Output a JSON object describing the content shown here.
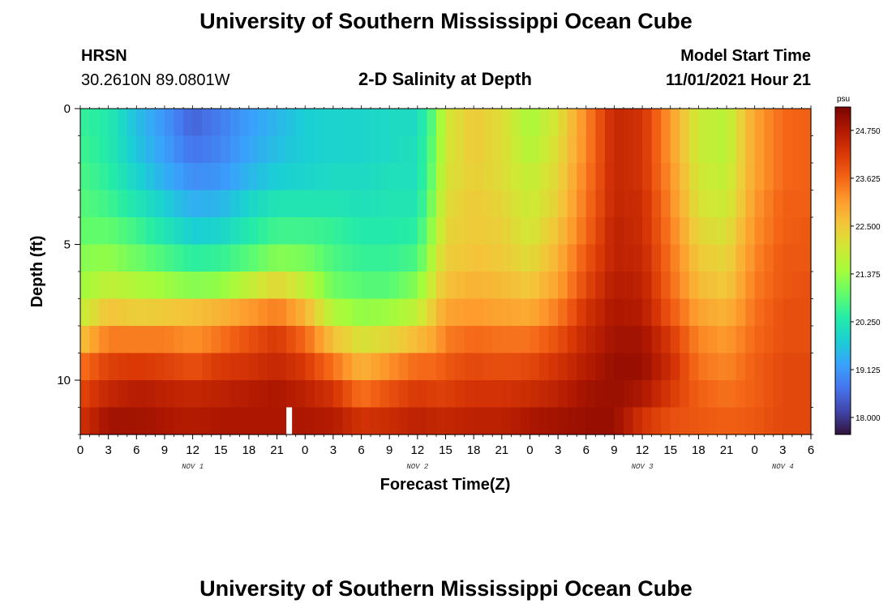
{
  "header": {
    "title": "University of Southern Mississippi Ocean Cube",
    "station": "HRSN",
    "coordinates": "30.2610N  89.0801W",
    "plot_title": "2-D Salinity at Depth",
    "start_label": "Model Start Time",
    "start_value": "11/01/2021 Hour 21"
  },
  "footer": {
    "title": "University of Southern Mississippi Ocean Cube"
  },
  "chart_data": {
    "type": "heatmap",
    "title": "2-D Salinity at Depth",
    "xlabel": "Forecast Time(Z)",
    "ylabel": "Depth (ft)",
    "x_tick_labels": [
      "0",
      "3",
      "6",
      "9",
      "12",
      "15",
      "18",
      "21",
      "0",
      "3",
      "6",
      "9",
      "12",
      "15",
      "18",
      "21",
      "0",
      "3",
      "6",
      "9",
      "12",
      "15",
      "18",
      "21",
      "0",
      "3",
      "6"
    ],
    "date_labels": [
      {
        "label": "NOV 1",
        "hour": 12
      },
      {
        "label": "NOV 2",
        "hour": 36
      },
      {
        "label": "NOV 3",
        "hour": 60
      },
      {
        "label": "NOV 4",
        "hour": 75
      }
    ],
    "x_range_hours": [
      0,
      78
    ],
    "y_ticks": [
      0,
      5,
      10
    ],
    "y_range_ft": [
      0,
      12
    ],
    "depth_levels_ft": [
      0.5,
      1.5,
      2.5,
      3.5,
      4.5,
      5.5,
      6.5,
      7.5,
      8.5,
      9.5,
      10.5,
      11.5
    ],
    "colorbar": {
      "unit": "psu",
      "min": 17.6,
      "max": 25.3,
      "ticks": [
        "24.750",
        "23.625",
        "22.500",
        "21.375",
        "20.250",
        "19.125",
        "18.000"
      ],
      "tick_values": [
        24.75,
        23.625,
        22.5,
        21.375,
        20.25,
        19.125,
        18.0
      ],
      "colors": [
        "#30123b",
        "#4145ab",
        "#4675ed",
        "#39a2fc",
        "#1bcfd4",
        "#24eca6",
        "#61fc6c",
        "#a4fc3b",
        "#d1e834",
        "#f3c63a",
        "#fe9b2d",
        "#f36315",
        "#d93806",
        "#b11901",
        "#7a0402"
      ]
    },
    "profiles": [
      {
        "hour": 0,
        "values": [
          20.5,
          20.6,
          20.7,
          20.8,
          20.9,
          21.2,
          21.4,
          21.8,
          22.6,
          23.5,
          24.0,
          24.3
        ]
      },
      {
        "hour": 3,
        "values": [
          20.3,
          20.3,
          20.4,
          20.6,
          20.9,
          21.3,
          21.8,
          22.6,
          23.4,
          24.1,
          24.5,
          24.9
        ]
      },
      {
        "hour": 6,
        "values": [
          19.6,
          19.7,
          19.9,
          20.2,
          20.6,
          21.0,
          21.6,
          22.4,
          23.4,
          24.2,
          24.7,
          24.9
        ]
      },
      {
        "hour": 9,
        "values": [
          19.1,
          19.2,
          19.4,
          19.8,
          20.2,
          20.7,
          21.4,
          22.5,
          23.4,
          24.1,
          24.6,
          24.8
        ]
      },
      {
        "hour": 12,
        "values": [
          18.5,
          18.7,
          19.0,
          19.4,
          19.8,
          20.4,
          21.2,
          22.6,
          23.2,
          23.9,
          24.5,
          24.7
        ]
      },
      {
        "hour": 15,
        "values": [
          18.8,
          18.9,
          19.1,
          19.5,
          19.9,
          20.5,
          21.3,
          22.8,
          23.5,
          24.2,
          24.6,
          24.8
        ]
      },
      {
        "hour": 18,
        "values": [
          19.2,
          19.3,
          19.5,
          19.9,
          20.3,
          20.8,
          21.8,
          23.1,
          23.9,
          24.3,
          24.7,
          24.8
        ]
      },
      {
        "hour": 21,
        "values": [
          19.5,
          19.6,
          19.8,
          20.2,
          20.6,
          21.2,
          22.3,
          23.4,
          24.2,
          24.5,
          24.8,
          24.8
        ]
      },
      {
        "hour": 24,
        "values": [
          19.8,
          19.8,
          19.9,
          20.2,
          20.6,
          21.1,
          21.8,
          22.8,
          23.6,
          24.2,
          24.6,
          24.8
        ]
      },
      {
        "hour": 27,
        "values": [
          19.9,
          19.9,
          20.0,
          20.2,
          20.5,
          20.7,
          21.0,
          21.6,
          22.6,
          23.5,
          24.3,
          24.7
        ]
      },
      {
        "hour": 30,
        "values": [
          19.9,
          19.9,
          20.0,
          20.1,
          20.3,
          20.5,
          20.8,
          21.3,
          22.1,
          22.8,
          23.5,
          24.3
        ]
      },
      {
        "hour": 33,
        "values": [
          20.0,
          20.0,
          20.1,
          20.2,
          20.3,
          20.5,
          20.8,
          21.4,
          22.3,
          23.2,
          23.9,
          24.4
        ]
      },
      {
        "hour": 36,
        "values": [
          20.0,
          20.1,
          20.1,
          20.2,
          20.4,
          20.7,
          21.2,
          21.8,
          22.7,
          23.6,
          24.2,
          24.6
        ]
      },
      {
        "hour": 38,
        "values": [
          21.0,
          21.1,
          21.2,
          21.4,
          21.6,
          21.9,
          22.2,
          22.6,
          23.0,
          23.6,
          24.1,
          24.5
        ]
      },
      {
        "hour": 39,
        "values": [
          22.0,
          22.0,
          22.1,
          22.2,
          22.3,
          22.4,
          22.6,
          23.0,
          23.4,
          23.8,
          24.1,
          24.5
        ]
      },
      {
        "hour": 42,
        "values": [
          22.5,
          22.5,
          22.4,
          22.5,
          22.5,
          22.6,
          22.8,
          23.1,
          23.6,
          24.0,
          24.3,
          24.6
        ]
      },
      {
        "hour": 45,
        "values": [
          22.2,
          22.2,
          22.2,
          22.3,
          22.4,
          22.5,
          22.7,
          23.0,
          23.5,
          23.9,
          24.3,
          24.6
        ]
      },
      {
        "hour": 48,
        "values": [
          21.5,
          21.6,
          21.8,
          21.9,
          22.0,
          22.2,
          22.5,
          22.9,
          23.5,
          24.0,
          24.4,
          24.8
        ]
      },
      {
        "hour": 51,
        "values": [
          22.1,
          22.2,
          22.3,
          22.4,
          22.6,
          22.8,
          23.0,
          23.4,
          23.9,
          24.3,
          24.6,
          24.9
        ]
      },
      {
        "hour": 54,
        "values": [
          23.3,
          23.3,
          23.4,
          23.5,
          23.6,
          23.8,
          24.0,
          24.3,
          24.5,
          24.7,
          24.9,
          25.0
        ]
      },
      {
        "hour": 57,
        "values": [
          24.5,
          24.5,
          24.5,
          24.5,
          24.6,
          24.6,
          24.7,
          24.8,
          24.9,
          25.0,
          25.0,
          25.0
        ]
      },
      {
        "hour": 60,
        "values": [
          24.3,
          24.3,
          24.3,
          24.4,
          24.4,
          24.5,
          24.6,
          24.7,
          24.9,
          25.0,
          24.8,
          24.3
        ]
      },
      {
        "hour": 63,
        "values": [
          23.1,
          23.1,
          23.2,
          23.3,
          23.4,
          23.5,
          23.6,
          23.8,
          24.2,
          24.4,
          24.2,
          23.9
        ]
      },
      {
        "hour": 66,
        "values": [
          21.9,
          21.9,
          22.0,
          22.1,
          22.3,
          22.5,
          22.7,
          23.0,
          23.3,
          23.5,
          23.7,
          23.8
        ]
      },
      {
        "hour": 69,
        "values": [
          21.7,
          21.7,
          21.8,
          21.9,
          22.1,
          22.3,
          22.5,
          22.8,
          23.1,
          23.3,
          23.5,
          23.7
        ]
      },
      {
        "hour": 72,
        "values": [
          23.0,
          23.0,
          23.0,
          23.1,
          23.2,
          23.3,
          23.4,
          23.5,
          23.6,
          23.7,
          23.7,
          23.8
        ]
      },
      {
        "hour": 75,
        "values": [
          23.6,
          23.6,
          23.6,
          23.7,
          23.7,
          23.8,
          23.8,
          23.9,
          23.9,
          24.0,
          24.0,
          24.0
        ]
      },
      {
        "hour": 78,
        "values": [
          23.7,
          23.7,
          23.7,
          23.7,
          23.8,
          23.8,
          23.9,
          23.9,
          23.9,
          24.0,
          24.0,
          24.0
        ]
      }
    ],
    "missing_cells": [
      {
        "hour": 22,
        "depth_ft": 11.5
      }
    ]
  }
}
